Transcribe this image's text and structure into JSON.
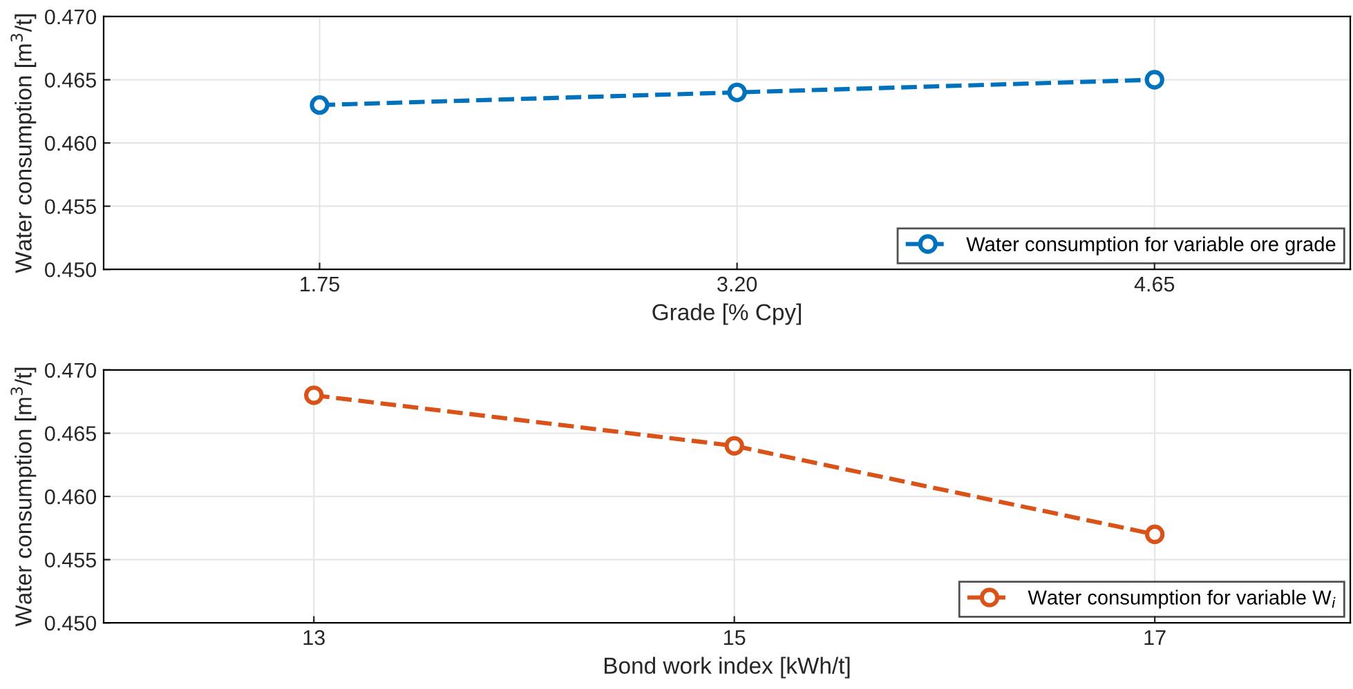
{
  "chart_data": [
    {
      "type": "line",
      "xlabel": "Grade [% Cpy]",
      "ylabel": "Water consumption [m$^{3}$/t]",
      "x": [
        1.75,
        3.2,
        4.65
      ],
      "series": [
        {
          "name": "Water consumption for variable ore grade",
          "color": "#0072bd",
          "values": [
            0.463,
            0.464,
            0.465
          ]
        }
      ],
      "xlim": [
        1.0,
        5.33
      ],
      "xticks": [
        {
          "value": 1.75,
          "label": "1.75"
        },
        {
          "value": 3.2,
          "label": "3.20"
        },
        {
          "value": 4.65,
          "label": "4.65"
        }
      ],
      "ylim": [
        0.45,
        0.47
      ],
      "yticks": [
        {
          "value": 0.45,
          "label": "0.450"
        },
        {
          "value": 0.455,
          "label": "0.455"
        },
        {
          "value": 0.46,
          "label": "0.460"
        },
        {
          "value": 0.465,
          "label": "0.465"
        },
        {
          "value": 0.47,
          "label": "0.470"
        }
      ],
      "grid": true,
      "legend": "bottom right",
      "marker": "circle",
      "line_style": "dashed"
    },
    {
      "type": "line",
      "xlabel": "Bond work index [kWh/t]",
      "ylabel": "Water consumption [m$^{3}$/t]",
      "x": [
        13,
        15,
        17
      ],
      "series": [
        {
          "name": "Water consumption for variable W$_{i}$",
          "color": "#d95319",
          "values": [
            0.468,
            0.464,
            0.457
          ]
        }
      ],
      "xlim": [
        12,
        17.93
      ],
      "xticks": [
        13,
        15,
        17
      ],
      "ylim": [
        0.45,
        0.47
      ],
      "yticks": [
        {
          "value": 0.45,
          "label": "0.450"
        },
        {
          "value": 0.455,
          "label": "0.455"
        },
        {
          "value": 0.46,
          "label": "0.460"
        },
        {
          "value": 0.465,
          "label": "0.465"
        },
        {
          "value": 0.47,
          "label": "0.470"
        }
      ],
      "grid": true,
      "legend": "bottom right",
      "marker": "circle",
      "line_style": "dashed"
    }
  ]
}
